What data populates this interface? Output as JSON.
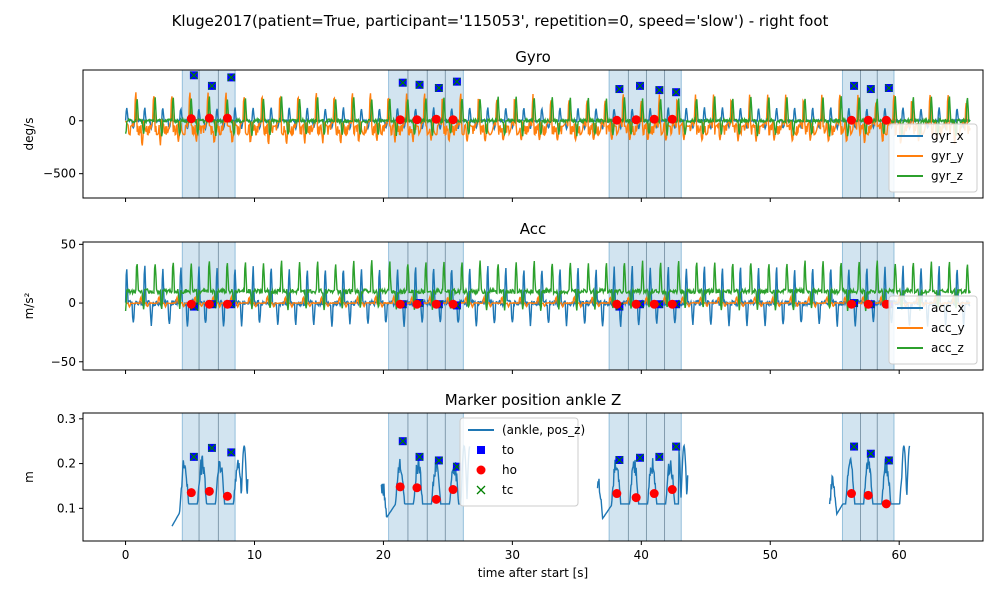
{
  "suptitle": "Kluge2017(patient=True, participant='115053', repetition=0, speed='slow') - right foot",
  "chart_data": [
    {
      "type": "line",
      "title": "Gyro",
      "ylabel": "deg/s",
      "xlim": [
        -3.3,
        66.5
      ],
      "ylim": [
        -730,
        480
      ],
      "yticks": [
        -500,
        0
      ],
      "legend": {
        "placement": "lower-right",
        "entries": [
          "gyr_x",
          "gyr_y",
          "gyr_z"
        ]
      },
      "series": [
        {
          "name": "gyr_x",
          "color": "#1f77b4",
          "base": 0,
          "amp": 120
        },
        {
          "name": "gyr_y",
          "color": "#ff7f0e",
          "base": 0,
          "amp": 330
        },
        {
          "name": "gyr_z",
          "color": "#2ca02c",
          "base": 0,
          "amp": 220
        }
      ],
      "to": [
        [
          5.3,
          430
        ],
        [
          6.7,
          330
        ],
        [
          8.2,
          410
        ],
        [
          21.5,
          360
        ],
        [
          22.8,
          340
        ],
        [
          24.3,
          310
        ],
        [
          25.7,
          370
        ],
        [
          38.3,
          300
        ],
        [
          39.9,
          330
        ],
        [
          41.4,
          290
        ],
        [
          42.7,
          270
        ],
        [
          56.5,
          330
        ],
        [
          57.8,
          300
        ],
        [
          59.2,
          310
        ]
      ],
      "ho": [
        [
          5.1,
          20
        ],
        [
          6.5,
          25
        ],
        [
          7.9,
          25
        ],
        [
          21.3,
          10
        ],
        [
          22.6,
          10
        ],
        [
          24.1,
          15
        ],
        [
          25.4,
          10
        ],
        [
          38.1,
          5
        ],
        [
          39.6,
          10
        ],
        [
          41.0,
          15
        ],
        [
          42.4,
          15
        ],
        [
          56.3,
          5
        ],
        [
          57.6,
          5
        ],
        [
          59.0,
          5
        ]
      ]
    },
    {
      "type": "line",
      "title": "Acc",
      "ylabel": "m/s²",
      "xlim": [
        -3.3,
        66.5
      ],
      "ylim": [
        -57,
        52
      ],
      "yticks": [
        -50,
        0,
        50
      ],
      "legend": {
        "placement": "lower-right",
        "entries": [
          "acc_x",
          "acc_y",
          "acc_z"
        ]
      },
      "series": [
        {
          "name": "acc_x",
          "color": "#1f77b4",
          "base": 0,
          "amp": 30
        },
        {
          "name": "acc_y",
          "color": "#ff7f0e",
          "base": 0,
          "amp": 5
        },
        {
          "name": "acc_z",
          "color": "#2ca02c",
          "base": 10,
          "amp": 25
        }
      ],
      "to": [
        [
          5.3,
          -3
        ],
        [
          6.7,
          -1
        ],
        [
          8.2,
          -1
        ],
        [
          21.5,
          -1
        ],
        [
          22.8,
          0
        ],
        [
          24.3,
          -1
        ],
        [
          25.7,
          -2
        ],
        [
          38.3,
          -3
        ],
        [
          39.9,
          -1
        ],
        [
          41.4,
          -1
        ],
        [
          42.7,
          -1
        ],
        [
          56.5,
          0
        ],
        [
          57.8,
          -1
        ],
        [
          59.2,
          -1
        ]
      ],
      "ho": [
        [
          5.1,
          -1
        ],
        [
          6.5,
          -1
        ],
        [
          7.9,
          -1
        ],
        [
          21.3,
          -1
        ],
        [
          22.6,
          -1
        ],
        [
          24.1,
          -1
        ],
        [
          25.4,
          -1
        ],
        [
          38.1,
          -1
        ],
        [
          39.6,
          -1
        ],
        [
          41.0,
          -1
        ],
        [
          42.4,
          -1
        ],
        [
          56.3,
          -1
        ],
        [
          57.6,
          -1
        ],
        [
          59.0,
          -1
        ]
      ]
    },
    {
      "type": "line",
      "title": "Marker position ankle Z",
      "ylabel": "m",
      "xlabel": "time after start [s]",
      "xlim": [
        -3.3,
        66.5
      ],
      "ylim": [
        0.027,
        0.313
      ],
      "yticks": [
        0.1,
        0.2,
        0.3
      ],
      "xticks": [
        0,
        10,
        20,
        30,
        40,
        50,
        60
      ],
      "legend": {
        "placement": "upper-center",
        "entries": [
          "(ankle, pos_z)",
          "to",
          "ho",
          "tc"
        ]
      },
      "series": [
        {
          "name": "(ankle, pos_z)",
          "color": "#1f77b4"
        }
      ],
      "to": [
        [
          5.3,
          0.215
        ],
        [
          6.7,
          0.235
        ],
        [
          8.2,
          0.225
        ],
        [
          21.5,
          0.25
        ],
        [
          22.8,
          0.215
        ],
        [
          24.3,
          0.207
        ],
        [
          25.7,
          0.193
        ],
        [
          38.3,
          0.208
        ],
        [
          39.9,
          0.213
        ],
        [
          41.4,
          0.215
        ],
        [
          42.7,
          0.238
        ],
        [
          56.5,
          0.238
        ],
        [
          57.8,
          0.222
        ],
        [
          59.2,
          0.207
        ]
      ],
      "ho": [
        [
          5.1,
          0.135
        ],
        [
          6.5,
          0.138
        ],
        [
          7.9,
          0.127
        ],
        [
          21.3,
          0.148
        ],
        [
          22.6,
          0.146
        ],
        [
          24.1,
          0.12
        ],
        [
          25.4,
          0.142
        ],
        [
          38.1,
          0.133
        ],
        [
          39.6,
          0.124
        ],
        [
          41.0,
          0.133
        ],
        [
          42.4,
          0.142
        ],
        [
          56.3,
          0.133
        ],
        [
          57.6,
          0.129
        ],
        [
          59.0,
          0.11
        ]
      ]
    }
  ],
  "shaded_regions": [
    [
      4.4,
      8.5
    ],
    [
      20.4,
      26.2
    ],
    [
      37.5,
      43.1
    ],
    [
      55.6,
      59.6
    ]
  ],
  "region_dividers": [
    5.7,
    7.2,
    21.9,
    23.4,
    24.8,
    39.0,
    40.4,
    41.8,
    57.0,
    58.3
  ],
  "ankle_segments": [
    [
      3.6,
      9.5
    ],
    [
      19.8,
      26.7
    ],
    [
      36.6,
      43.6
    ],
    [
      54.6,
      60.8
    ]
  ],
  "colors": {
    "shade": "#1f77b4",
    "to": "#0000ff",
    "ho": "#ff0000",
    "tc": "#008000"
  }
}
